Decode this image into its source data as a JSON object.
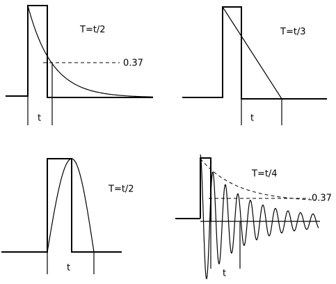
{
  "panels": [
    {
      "label": "T=t/2",
      "level": "0.37",
      "time": "t"
    },
    {
      "label": "T=t/3",
      "time": "t"
    },
    {
      "label": "T=t/2",
      "time": "t"
    },
    {
      "label": "T=t/4",
      "level": "0.37",
      "time": "t"
    }
  ]
}
